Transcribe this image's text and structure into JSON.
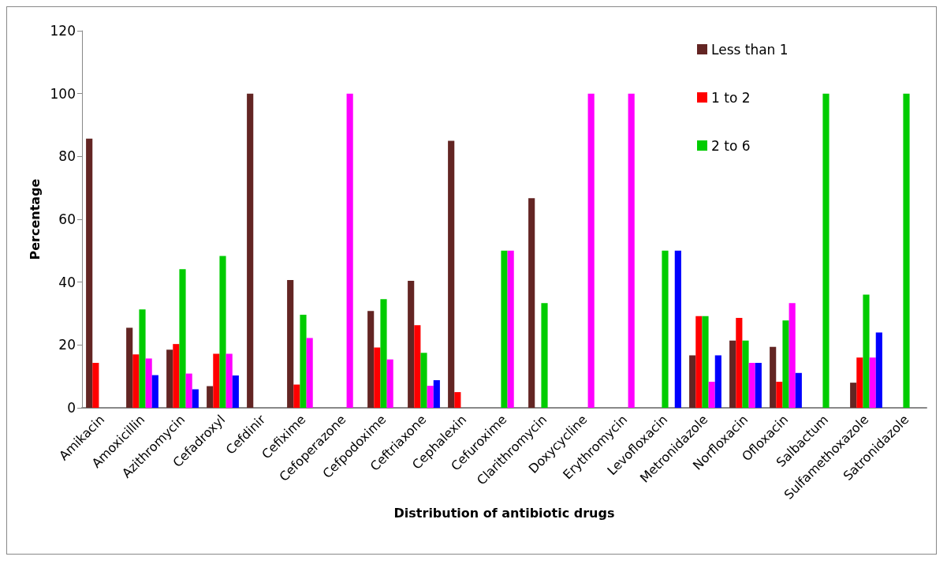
{
  "chart_data": {
    "type": "bar",
    "xlabel": "Distribution of antibiotic drugs",
    "ylabel": "Percentage",
    "categories": [
      "Amikacin",
      "Amoxicillin",
      "Azithromycin",
      "Cefadroxyl",
      "Cefdinir",
      "Cefixime",
      "Cefoperazone",
      "Cefpodoxime",
      "Ceftriaxone",
      "Cephalexin",
      "Cefuroxime",
      "Clarithromycin",
      "Doxycycline",
      "Erythromycin",
      "Levofloxacin",
      "Metronidazole",
      "Norfloxacin",
      "Ofloxacin",
      "Salbactum",
      "Sulfamethoxazole",
      "Satronidazole"
    ],
    "series": [
      {
        "name": "Less than 1",
        "color": "#632523",
        "values": [
          85.7,
          25.5,
          18.5,
          6.9,
          100,
          40.7,
          null,
          30.8,
          40.4,
          85,
          null,
          66.7,
          null,
          null,
          null,
          16.7,
          21.4,
          19.4,
          null,
          8,
          null
        ]
      },
      {
        "name": "1 to 2",
        "color": "#ff0000",
        "values": [
          14.3,
          17,
          20.3,
          17.2,
          null,
          7.4,
          null,
          19.2,
          26.3,
          5,
          null,
          null,
          null,
          null,
          null,
          29.2,
          28.6,
          8.3,
          null,
          16,
          null
        ]
      },
      {
        "name": "2 to 6",
        "color": "#00cc00",
        "values": [
          null,
          31.3,
          44.1,
          48.3,
          null,
          29.6,
          null,
          34.6,
          17.5,
          null,
          50,
          33.3,
          null,
          null,
          50,
          29.2,
          21.4,
          27.8,
          100,
          36,
          100
        ]
      },
      {
        "color": "#ff00ff",
        "values": [
          null,
          15.7,
          10.9,
          17.2,
          null,
          22.2,
          100,
          15.4,
          7,
          null,
          50,
          null,
          100,
          100,
          null,
          8.3,
          14.3,
          33.3,
          null,
          16,
          null
        ]
      },
      {
        "color": "#0000ff",
        "values": [
          null,
          10.4,
          5.9,
          10.3,
          null,
          null,
          null,
          null,
          8.8,
          null,
          null,
          null,
          null,
          null,
          50,
          16.7,
          14.3,
          11.1,
          null,
          24,
          null
        ]
      }
    ],
    "ylim": [
      0,
      120
    ],
    "yticks": [
      0,
      20,
      40,
      60,
      80,
      100,
      120
    ],
    "grid": false,
    "legend": "top right"
  }
}
